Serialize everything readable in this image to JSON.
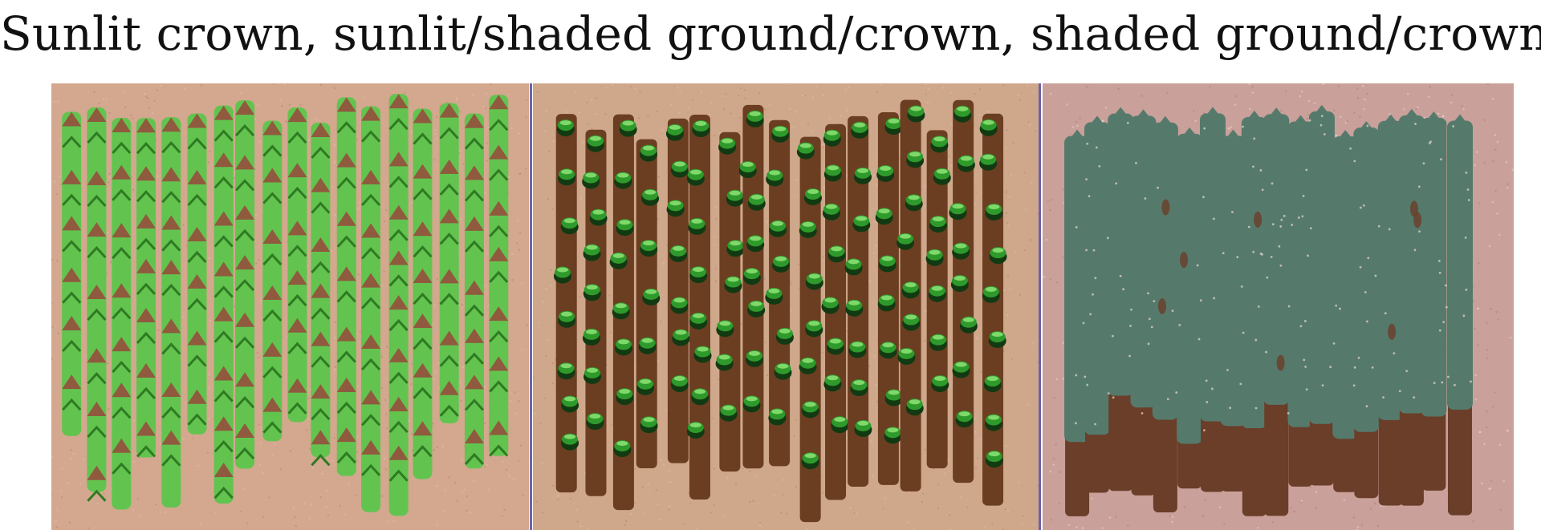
{
  "title": "Sunlit crown, sunlit/shaded ground/crown, shaded ground/crown",
  "panels": [
    {
      "name": "sunlit-crown",
      "bg": "#d3a88f",
      "crown": "#62c44f",
      "crown_dark": "#2f7a22",
      "top": "#8f5a3e"
    },
    {
      "name": "sunlit-shaded-mix",
      "bg": "#cfa88c",
      "shadow": "#6b3e22",
      "crown": "#2f9a2c",
      "cap": "#7fd86a",
      "dark": "#123a12"
    },
    {
      "name": "shaded",
      "bg": "#c9a09a",
      "crown": "#557a6c",
      "shadow": "#6a3e28",
      "fleck": "#e8d8d0"
    }
  ],
  "colors": {
    "divider": "#6b63a6"
  }
}
